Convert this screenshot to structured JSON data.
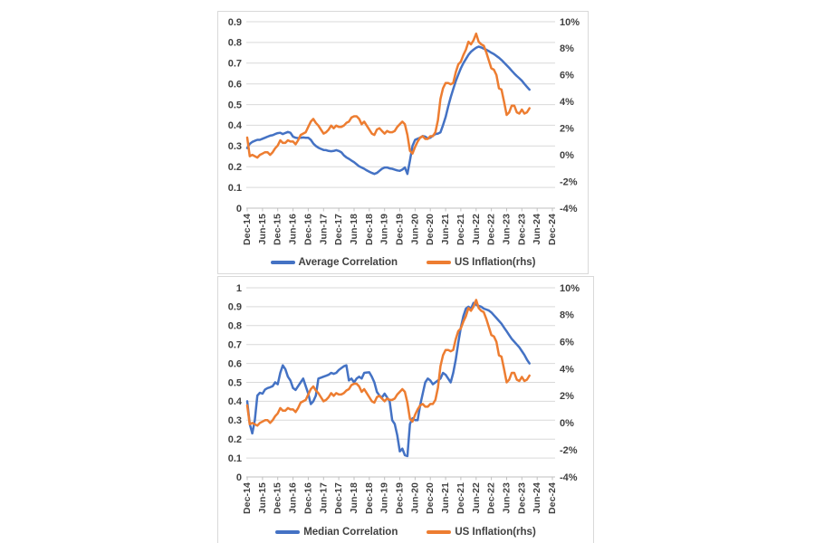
{
  "page": {
    "background": "#ffffff"
  },
  "colors": {
    "series_blue": "#4472C4",
    "series_orange": "#ED7D31",
    "gridline": "#D9D9D9",
    "axis_line": "#BFBFBF",
    "label_text": "#404040",
    "panel_border": "#D9D9D9",
    "panel_background": "#ffffff"
  },
  "chart_data": [
    {
      "type": "line",
      "grid": "horizontal",
      "legend_position": "bottom",
      "x_frequency": "monthly",
      "x_start": "Dec-14",
      "x_end": "Mar-24",
      "x_tick_labels": [
        "Dec-14",
        "Jun-15",
        "Dec-15",
        "Jun-16",
        "Dec-16",
        "Jun-17",
        "Dec-17",
        "Jun-18",
        "Dec-18",
        "Jun-19",
        "Dec-19",
        "Jun-20",
        "Dec-20",
        "Jun-21",
        "Dec-21",
        "Jun-22",
        "Dec-22",
        "Jun-23",
        "Dec-23",
        "Jun-24",
        "Dec-24"
      ],
      "left_axis": {
        "min": 0,
        "max": 0.9,
        "step": 0.1,
        "tick_labels": [
          "0",
          "0.1",
          "0.2",
          "0.3",
          "0.4",
          "0.5",
          "0.6",
          "0.7",
          "0.8",
          "0.9"
        ]
      },
      "right_axis": {
        "min": -4,
        "max": 10,
        "step": 2,
        "tick_labels": [
          "-4%",
          "-2%",
          "0%",
          "2%",
          "4%",
          "6%",
          "8%",
          "10%"
        ]
      },
      "series": [
        {
          "name": "Average Correlation",
          "axis": "left",
          "color": "#4472C4",
          "values": [
            0.29,
            0.31,
            0.32,
            0.325,
            0.33,
            0.33,
            0.335,
            0.34,
            0.345,
            0.35,
            0.352,
            0.358,
            0.362,
            0.364,
            0.358,
            0.363,
            0.368,
            0.364,
            0.345,
            0.34,
            0.338,
            0.34,
            0.341,
            0.34,
            0.34,
            0.33,
            0.312,
            0.3,
            0.292,
            0.286,
            0.281,
            0.28,
            0.276,
            0.275,
            0.276,
            0.28,
            0.276,
            0.27,
            0.255,
            0.245,
            0.238,
            0.23,
            0.222,
            0.212,
            0.202,
            0.196,
            0.19,
            0.182,
            0.176,
            0.17,
            0.165,
            0.17,
            0.18,
            0.19,
            0.196,
            0.196,
            0.192,
            0.19,
            0.186,
            0.182,
            0.18,
            0.186,
            0.196,
            0.165,
            0.23,
            0.3,
            0.33,
            0.335,
            0.34,
            0.348,
            0.345,
            0.337,
            0.34,
            0.35,
            0.358,
            0.36,
            0.366,
            0.4,
            0.44,
            0.49,
            0.535,
            0.575,
            0.613,
            0.645,
            0.675,
            0.7,
            0.72,
            0.74,
            0.755,
            0.765,
            0.774,
            0.78,
            0.776,
            0.77,
            0.765,
            0.758,
            0.75,
            0.744,
            0.735,
            0.726,
            0.715,
            0.703,
            0.69,
            0.677,
            0.663,
            0.65,
            0.638,
            0.627,
            0.615,
            0.6,
            0.586,
            0.572
          ]
        },
        {
          "name": "US Inflation(rhs)",
          "axis": "right",
          "unit": "%",
          "color": "#ED7D31",
          "values": [
            1.3,
            -0.1,
            0,
            -0.1,
            -0.2,
            0,
            0.1,
            0.2,
            0.2,
            0,
            0.2,
            0.5,
            0.7,
            1.1,
            0.9,
            0.9,
            1.1,
            1,
            1,
            0.8,
            1.1,
            1.5,
            1.6,
            1.7,
            2.1,
            2.5,
            2.7,
            2.4,
            2.2,
            1.9,
            1.6,
            1.7,
            1.9,
            2.2,
            2,
            2.2,
            2.1,
            2.1,
            2.2,
            2.4,
            2.5,
            2.8,
            2.9,
            2.9,
            2.7,
            2.3,
            2.5,
            2.2,
            1.9,
            1.6,
            1.5,
            1.9,
            2,
            1.8,
            1.6,
            1.8,
            1.7,
            1.7,
            1.8,
            2.1,
            2.3,
            2.5,
            2.3,
            1.5,
            0.3,
            0.1,
            0.6,
            1,
            1.3,
            1.4,
            1.2,
            1.2,
            1.4,
            1.4,
            1.7,
            2.6,
            4.2,
            5,
            5.4,
            5.4,
            5.3,
            5.4,
            6.2,
            6.8,
            7,
            7.5,
            7.9,
            8.5,
            8.3,
            8.6,
            9.1,
            8.5,
            8.3,
            8.2,
            7.7,
            7.1,
            6.5,
            6.4,
            6,
            5,
            4.9,
            4,
            3,
            3.2,
            3.7,
            3.7,
            3.2,
            3.1,
            3.4,
            3.1,
            3.2,
            3.5
          ]
        }
      ]
    },
    {
      "type": "line",
      "grid": "horizontal",
      "legend_position": "bottom",
      "x_frequency": "monthly",
      "x_start": "Dec-14",
      "x_end": "Mar-24",
      "x_tick_labels": [
        "Dec-14",
        "Jun-15",
        "Dec-15",
        "Jun-16",
        "Dec-16",
        "Jun-17",
        "Dec-17",
        "Jun-18",
        "Dec-18",
        "Jun-19",
        "Dec-19",
        "Jun-20",
        "Dec-20",
        "Jun-21",
        "Dec-21",
        "Jun-22",
        "Dec-22",
        "Jun-23",
        "Dec-23",
        "Jun-24",
        "Dec-24"
      ],
      "left_axis": {
        "min": 0,
        "max": 1,
        "step": 0.1,
        "tick_labels": [
          "0",
          "0.1",
          "0.2",
          "0.3",
          "0.4",
          "0.5",
          "0.6",
          "0.7",
          "0.8",
          "0.9",
          "1"
        ]
      },
      "right_axis": {
        "min": -4,
        "max": 10,
        "step": 2,
        "tick_labels": [
          "-4%",
          "-2%",
          "0%",
          "2%",
          "4%",
          "6%",
          "8%",
          "10%"
        ]
      },
      "series": [
        {
          "name": "Median Correlation",
          "axis": "left",
          "color": "#4472C4",
          "values": [
            0.4,
            0.28,
            0.23,
            0.3,
            0.43,
            0.445,
            0.44,
            0.462,
            0.47,
            0.474,
            0.48,
            0.5,
            0.49,
            0.55,
            0.59,
            0.57,
            0.53,
            0.51,
            0.47,
            0.46,
            0.48,
            0.5,
            0.52,
            0.48,
            0.44,
            0.385,
            0.4,
            0.43,
            0.52,
            0.525,
            0.53,
            0.535,
            0.54,
            0.55,
            0.545,
            0.55,
            0.565,
            0.575,
            0.585,
            0.59,
            0.51,
            0.52,
            0.5,
            0.52,
            0.53,
            0.52,
            0.55,
            0.552,
            0.553,
            0.53,
            0.5,
            0.45,
            0.43,
            0.42,
            0.44,
            0.42,
            0.4,
            0.3,
            0.28,
            0.22,
            0.135,
            0.15,
            0.115,
            0.11,
            0.28,
            0.31,
            0.3,
            0.3,
            0.38,
            0.44,
            0.5,
            0.52,
            0.51,
            0.49,
            0.5,
            0.51,
            0.52,
            0.55,
            0.54,
            0.52,
            0.5,
            0.55,
            0.62,
            0.71,
            0.79,
            0.85,
            0.89,
            0.9,
            0.89,
            0.92,
            0.91,
            0.905,
            0.9,
            0.89,
            0.885,
            0.88,
            0.87,
            0.855,
            0.84,
            0.825,
            0.81,
            0.79,
            0.77,
            0.75,
            0.73,
            0.715,
            0.7,
            0.685,
            0.665,
            0.645,
            0.62,
            0.6
          ]
        },
        {
          "name": "US Inflation(rhs)",
          "axis": "right",
          "unit": "%",
          "color": "#ED7D31",
          "values": [
            1.3,
            -0.1,
            0,
            -0.1,
            -0.2,
            0,
            0.1,
            0.2,
            0.2,
            0,
            0.2,
            0.5,
            0.7,
            1.1,
            0.9,
            0.9,
            1.1,
            1,
            1,
            0.8,
            1.1,
            1.5,
            1.6,
            1.7,
            2.1,
            2.5,
            2.7,
            2.4,
            2.2,
            1.9,
            1.6,
            1.7,
            1.9,
            2.2,
            2,
            2.2,
            2.1,
            2.1,
            2.2,
            2.4,
            2.5,
            2.8,
            2.9,
            2.9,
            2.7,
            2.3,
            2.5,
            2.2,
            1.9,
            1.6,
            1.5,
            1.9,
            2,
            1.8,
            1.6,
            1.8,
            1.7,
            1.7,
            1.8,
            2.1,
            2.3,
            2.5,
            2.3,
            1.5,
            0.3,
            0.1,
            0.6,
            1,
            1.3,
            1.4,
            1.2,
            1.2,
            1.4,
            1.4,
            1.7,
            2.6,
            4.2,
            5,
            5.4,
            5.4,
            5.3,
            5.4,
            6.2,
            6.8,
            7,
            7.5,
            7.9,
            8.5,
            8.3,
            8.6,
            9.1,
            8.5,
            8.3,
            8.2,
            7.7,
            7.1,
            6.5,
            6.4,
            6,
            5,
            4.9,
            4,
            3,
            3.2,
            3.7,
            3.7,
            3.2,
            3.1,
            3.4,
            3.1,
            3.2,
            3.5
          ]
        }
      ]
    }
  ]
}
